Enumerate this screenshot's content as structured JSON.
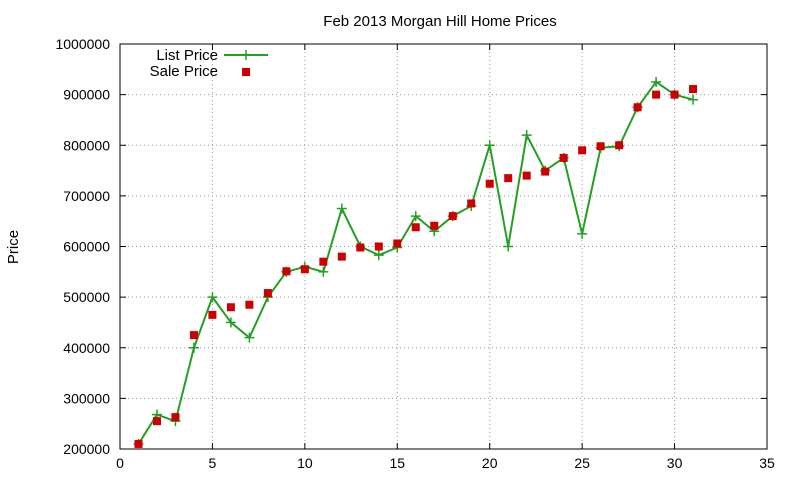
{
  "chart_data": {
    "type": "line",
    "title": "Feb 2013 Morgan Hill Home Prices",
    "xlabel": "",
    "ylabel": "Price",
    "xlim": [
      0,
      35
    ],
    "ylim": [
      200000,
      1000000
    ],
    "x_ticks": [
      "0",
      "5",
      "10",
      "15",
      "20",
      "25",
      "30",
      "35"
    ],
    "y_ticks": [
      "200000",
      "300000",
      "400000",
      "500000",
      "600000",
      "700000",
      "800000",
      "900000",
      "1000000"
    ],
    "grid": true,
    "legend_position": "top-left",
    "series": [
      {
        "name": "List Price",
        "style": "line-with-plus-markers",
        "color": "#22a022",
        "x": [
          1,
          2,
          3,
          4,
          5,
          6,
          7,
          8,
          9,
          10,
          11,
          12,
          13,
          14,
          15,
          16,
          17,
          18,
          19,
          20,
          21,
          22,
          23,
          24,
          25,
          26,
          27,
          28,
          29,
          30,
          31
        ],
        "y": [
          210000,
          268000,
          255000,
          400000,
          500000,
          450000,
          420000,
          500000,
          550000,
          560000,
          550000,
          675000,
          600000,
          583000,
          598000,
          660000,
          630000,
          660000,
          680000,
          800000,
          600000,
          820000,
          750000,
          775000,
          625000,
          795000,
          798000,
          875000,
          925000,
          900000,
          890000
        ]
      },
      {
        "name": "Sale Price",
        "style": "square-markers",
        "color": "#cc0000",
        "x": [
          1,
          2,
          3,
          4,
          5,
          6,
          7,
          8,
          9,
          10,
          11,
          12,
          13,
          14,
          15,
          16,
          17,
          18,
          19,
          20,
          21,
          22,
          23,
          24,
          25,
          26,
          27,
          28,
          29,
          30,
          31
        ],
        "y": [
          210000,
          255000,
          263000,
          425000,
          465000,
          480000,
          485000,
          508000,
          551000,
          555000,
          570000,
          580000,
          598000,
          600000,
          606000,
          638000,
          641000,
          660000,
          685000,
          724000,
          735000,
          740000,
          748000,
          775000,
          790000,
          798000,
          800000,
          875000,
          900000,
          900000,
          911000
        ]
      }
    ]
  }
}
